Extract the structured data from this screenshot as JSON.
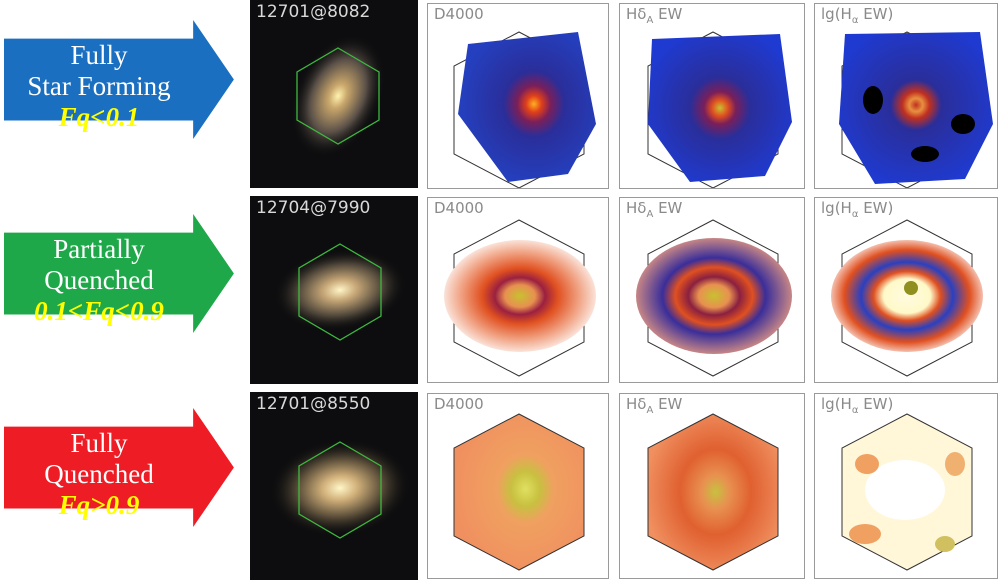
{
  "rows": [
    {
      "class_line1": "Fully",
      "class_line2": "Star Forming",
      "criterion": "Fq<0.1",
      "arrow_color": "#1a6fc0",
      "galaxy_id": "12701@8082",
      "map_titles": [
        "D4000",
        "HδA EW",
        "lg(Hα EW)"
      ],
      "maps_palette": "blue dominated, red center"
    },
    {
      "class_line1": "Partially",
      "class_line2": "Quenched",
      "criterion": "0.1<Fq<0.9",
      "arrow_color": "#1fa84a",
      "galaxy_id": "12704@7990",
      "map_titles": [
        "D4000",
        "HδA EW",
        "lg(Hα EW)"
      ],
      "maps_palette": "red rings"
    },
    {
      "class_line1": "Fully",
      "class_line2": "Quenched",
      "criterion": "Fq>0.9",
      "arrow_color": "#ee1c24",
      "galaxy_id": "12701@8550",
      "map_titles": [
        "D4000",
        "HδA EW",
        "lg(Hα EW)"
      ],
      "maps_palette": "orange/yellow"
    }
  ],
  "panel_labels": {
    "d4000": "D4000",
    "hd_main": "Hδ",
    "hd_sub": "A",
    "hd_rest": " EW",
    "ha_pre": "lg(H",
    "ha_sub": "α",
    "ha_post": " EW)"
  }
}
